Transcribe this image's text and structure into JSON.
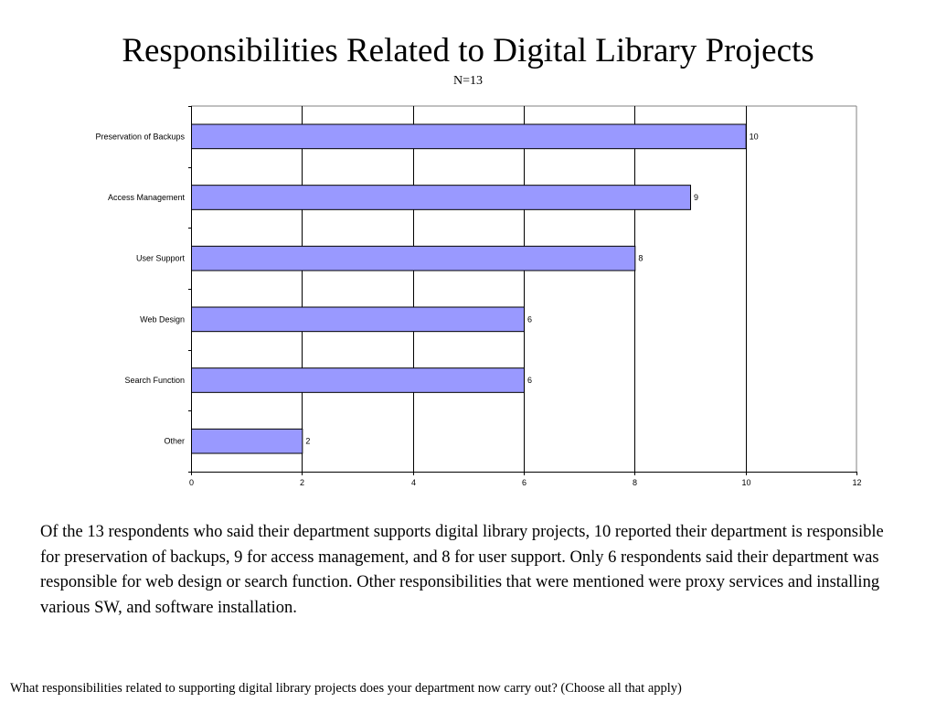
{
  "slide": {
    "title": "Responsibilities Related to Digital Library Projects",
    "subtitle": "N=13",
    "body_text": "Of the 13 respondents who said their department supports digital library projects, 10 reported their department is responsible for preservation of backups, 9 for access management, and 8 for user support.  Only 6 respondents said their department was responsible for web design or search function.  Other responsibilities that were mentioned were proxy services and installing various SW, and software installation.",
    "footer_question": "What responsibilities related to supporting digital library projects does your department now carry out? (Choose all that apply)"
  },
  "chart_data": {
    "type": "bar",
    "orientation": "horizontal",
    "categories": [
      "Preservation of Backups",
      "Access Management",
      "User Support",
      "Web Design",
      "Search Function",
      "Other"
    ],
    "values": [
      10,
      9,
      8,
      6,
      6,
      2
    ],
    "data_labels": [
      "10",
      "9",
      "8",
      "6",
      "6",
      "2"
    ],
    "xlim": [
      0,
      12
    ],
    "x_ticks": [
      0,
      2,
      4,
      6,
      8,
      10,
      12
    ],
    "x_tick_labels": [
      "0",
      "2",
      "4",
      "6",
      "8",
      "10",
      "12"
    ],
    "grid": true,
    "legend": "none",
    "colors": {
      "bar_fill": "#9999ff",
      "bar_stroke": "#000000",
      "grid": "#000000",
      "frame": "#808080"
    }
  }
}
